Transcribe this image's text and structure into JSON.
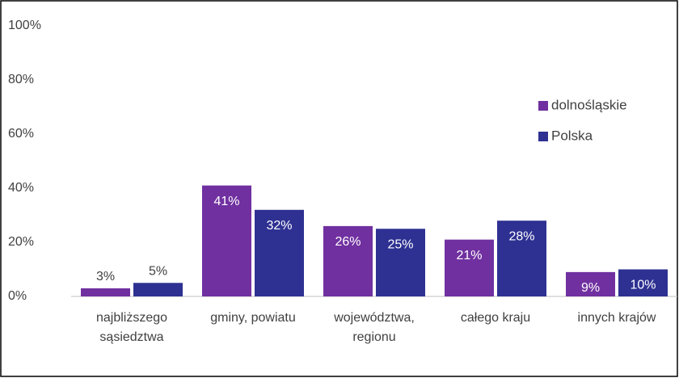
{
  "chart_data": {
    "type": "bar",
    "categories": [
      "najbliższego\nsąsiedztwa",
      "gminy, powiatu",
      "województwa,\nregionu",
      "całego kraju",
      "innych krajów"
    ],
    "series": [
      {
        "name": "dolnośląskie",
        "color": "#7030a0",
        "values": [
          3,
          41,
          26,
          21,
          9
        ],
        "value_labels": [
          "3%",
          "41%",
          "26%",
          "21%",
          "9%"
        ]
      },
      {
        "name": "Polska",
        "color": "#2e3192",
        "values": [
          5,
          32,
          25,
          28,
          10
        ],
        "value_labels": [
          "5%",
          "32%",
          "25%",
          "28%",
          "10%"
        ]
      }
    ],
    "ylim": [
      0,
      100
    ],
    "yticks": [
      {
        "value": 0,
        "label": "0%"
      },
      {
        "value": 20,
        "label": "20%"
      },
      {
        "value": 40,
        "label": "40%"
      },
      {
        "value": 60,
        "label": "60%"
      },
      {
        "value": 80,
        "label": "80%"
      },
      {
        "value": 100,
        "label": "100%"
      }
    ],
    "grid": false,
    "legend": "right"
  }
}
